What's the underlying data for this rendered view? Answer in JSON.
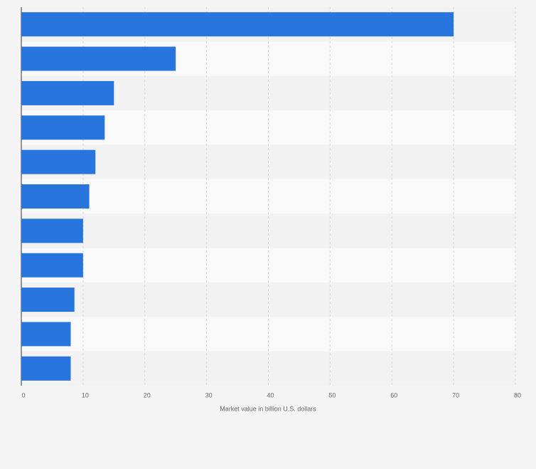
{
  "chart_data": {
    "type": "bar",
    "orientation": "horizontal",
    "x_label": "Market value in billion U.S. dollars",
    "categories": [
      null,
      null,
      null,
      null,
      null,
      null,
      null,
      null,
      null,
      null,
      null
    ],
    "values": [
      70,
      25,
      15,
      13.5,
      12,
      11,
      10,
      10,
      8.6,
      8,
      8
    ],
    "color": "#2876dd",
    "xlim": [
      0,
      80
    ],
    "xticks": [
      0,
      10,
      20,
      30,
      40,
      50,
      60,
      70,
      80
    ],
    "grid": true
  }
}
